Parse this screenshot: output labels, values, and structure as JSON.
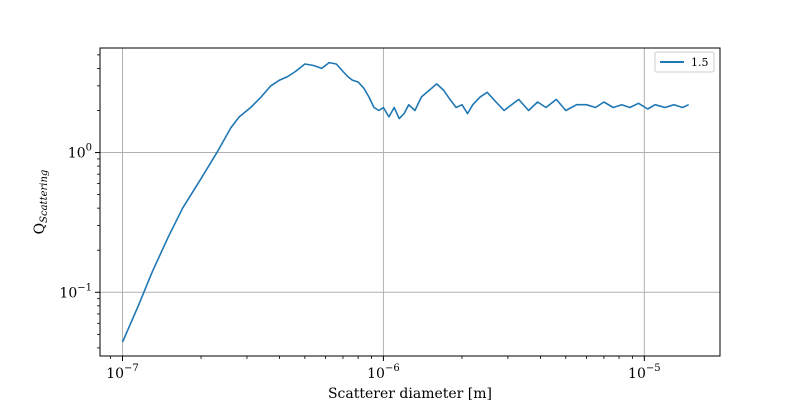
{
  "chart_data": {
    "type": "line",
    "xlabel": "Scatterer diameter [m]",
    "ylabel_main": "Q",
    "ylabel_sub": "Scattering",
    "x_scale": "log",
    "y_scale": "log",
    "xlim": [
      8.2e-08,
      1.95e-05
    ],
    "ylim": [
      0.035,
      5.6
    ],
    "grid": true,
    "legend_position": "upper-right",
    "x_ticks": [
      {
        "base": "10",
        "exp": "−7",
        "value": 1e-07
      },
      {
        "base": "10",
        "exp": "−6",
        "value": 1e-06
      },
      {
        "base": "10",
        "exp": "−5",
        "value": 1e-05
      }
    ],
    "y_ticks": [
      {
        "base": "10",
        "exp": "−1",
        "value": 0.1
      },
      {
        "base": "10",
        "exp": "0",
        "value": 1
      }
    ],
    "series": [
      {
        "name": "1.5",
        "color": "#1f77b4",
        "x": [
          1e-07,
          1.15e-07,
          1.3e-07,
          1.5e-07,
          1.7e-07,
          2e-07,
          2.3e-07,
          2.6e-07,
          2.8e-07,
          3.1e-07,
          3.4e-07,
          3.7e-07,
          4e-07,
          4.3e-07,
          4.6e-07,
          5e-07,
          5.4e-07,
          5.8e-07,
          6.2e-07,
          6.6e-07,
          7e-07,
          7.3e-07,
          7.6e-07,
          8e-07,
          8.4e-07,
          8.8e-07,
          9.2e-07,
          9.6e-07,
          1e-06,
          1.05e-06,
          1.1e-06,
          1.15e-06,
          1.2e-06,
          1.25e-06,
          1.32e-06,
          1.4e-06,
          1.5e-06,
          1.6e-06,
          1.7e-06,
          1.8e-06,
          1.9e-06,
          2e-06,
          2.1e-06,
          2.2e-06,
          2.35e-06,
          2.5e-06,
          2.7e-06,
          2.9e-06,
          3.1e-06,
          3.3e-06,
          3.6e-06,
          3.9e-06,
          4.2e-06,
          4.6e-06,
          5e-06,
          5.5e-06,
          6e-06,
          6.5e-06,
          7e-06,
          7.6e-06,
          8.2e-06,
          8.8e-06,
          9.5e-06,
          1.03e-05,
          1.1e-05,
          1.2e-05,
          1.3e-05,
          1.4e-05,
          1.48e-05
        ],
        "y": [
          0.044,
          0.08,
          0.14,
          0.25,
          0.4,
          0.65,
          1.0,
          1.5,
          1.8,
          2.1,
          2.5,
          3.0,
          3.3,
          3.5,
          3.8,
          4.3,
          4.2,
          4.0,
          4.4,
          4.3,
          3.8,
          3.5,
          3.3,
          3.2,
          2.9,
          2.5,
          2.1,
          2.0,
          2.1,
          1.8,
          2.1,
          1.75,
          1.9,
          2.2,
          2.0,
          2.5,
          2.8,
          3.1,
          2.8,
          2.4,
          2.1,
          2.2,
          1.9,
          2.2,
          2.5,
          2.7,
          2.3,
          2.0,
          2.2,
          2.4,
          2.0,
          2.3,
          2.1,
          2.4,
          2.0,
          2.2,
          2.2,
          2.1,
          2.3,
          2.1,
          2.2,
          2.1,
          2.25,
          2.05,
          2.2,
          2.1,
          2.2,
          2.1,
          2.2
        ]
      }
    ]
  }
}
